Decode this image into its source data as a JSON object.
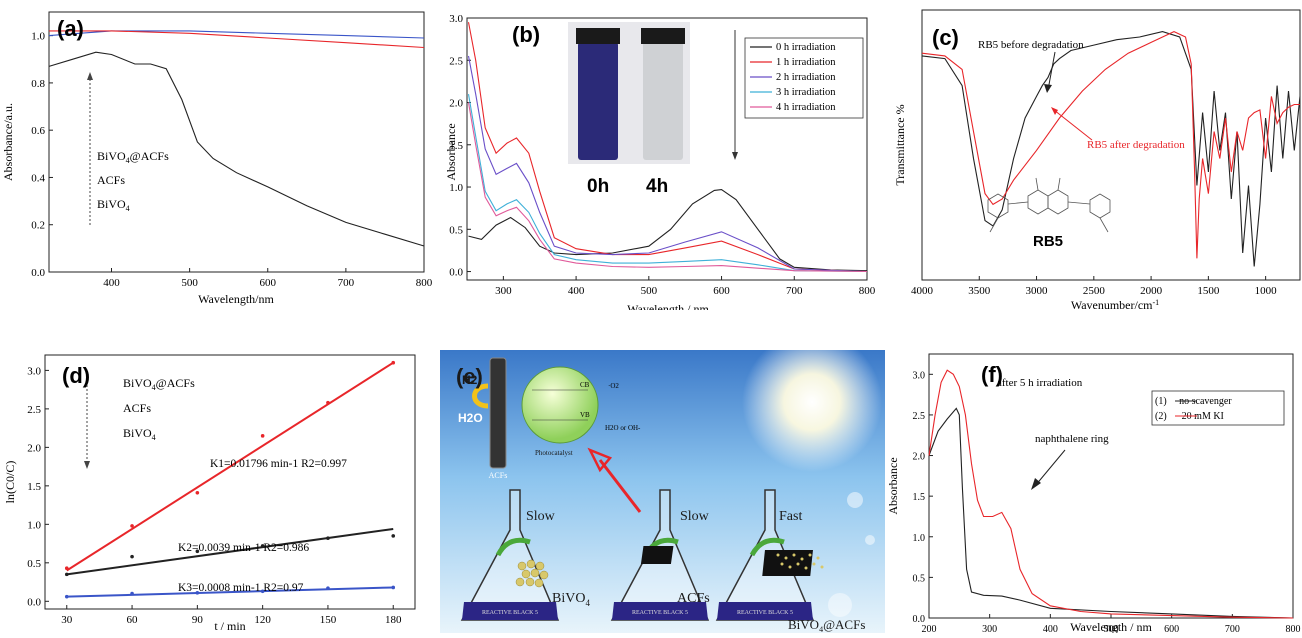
{
  "panels": {
    "a": {
      "label": "(a)",
      "xlabel": "Wavelength/nm",
      "ylabel": "Absorbance/a.u.",
      "legend": [
        "BiVO4@ACFs",
        "ACFs",
        "BiVO4"
      ],
      "legend_sub": "4"
    },
    "b": {
      "label": "(b)",
      "xlabel": "Wavelength / nm",
      "ylabel": "Absorbance",
      "legend": [
        "0 h irradiation",
        "1 h irradiation",
        "2 h irradiation",
        "3 h irradiation",
        "4 h irradiation"
      ],
      "photo_labels": [
        "0h",
        "4h"
      ]
    },
    "c": {
      "label": "(c)",
      "xlabel": "Wavenumber/cm",
      "ylabel": "Transmittance %",
      "annot_before": "RB5 before degradation",
      "annot_after": "RB5 after degradation",
      "molecule": "RB5"
    },
    "d": {
      "label": "(d)",
      "xlabel": "t / min",
      "ylabel": "ln(C0/C)",
      "legend": [
        "BiVO4@ACFs",
        "ACFs",
        "BiVO4"
      ],
      "eq1": "K1=0.01796 min-1 R2=0.997",
      "eq2": "K2=0.0039 min-1 R2=0.986",
      "eq3": "K3=0.0008 min-1 R2=0.97"
    },
    "e": {
      "label": "(e)",
      "h2": "H2",
      "h2o": "H2O",
      "acfs_rod": "ACFs",
      "cb": "CB",
      "vb": "VB",
      "photocat": "Photocatalyst",
      "o2": "·O2",
      "h2o_oh": "H2O or OH-",
      "flask_text": "REACTIVE BLACK 5",
      "speeds": [
        "Slow",
        "Slow",
        "Fast"
      ],
      "materials": [
        "BiVO4",
        "ACFs",
        "BiVO4@ACFs"
      ]
    },
    "f": {
      "label": "(f)",
      "xlabel": "Wavelength / nm",
      "ylabel": "Absorbance",
      "annot1": "after 5 h irradiation",
      "annot2": "naphthalene ring",
      "legend": [
        "(1)     no scavenger",
        "(2)      20 mM KI"
      ]
    }
  },
  "colors": {
    "black": "#222222",
    "red": "#e8262a",
    "blue": "#3a55c8",
    "purple": "#6a4fc8",
    "cyan": "#3fb0d8",
    "pink": "#e05a9a",
    "flask": "#2b2585"
  },
  "chart_data": [
    {
      "panel": "a",
      "type": "line",
      "xlim": [
        320,
        800
      ],
      "ylim": [
        0,
        1.1
      ],
      "xticks": [
        400,
        500,
        600,
        700,
        800
      ],
      "yticks": [
        0.0,
        0.2,
        0.4,
        0.6,
        0.8,
        1.0
      ],
      "series": [
        {
          "name": "BiVO4@ACFs",
          "color": "#3a55c8",
          "x": [
            320,
            400,
            500,
            600,
            700,
            800
          ],
          "y": [
            1.0,
            1.02,
            1.02,
            1.01,
            1.0,
            0.99
          ]
        },
        {
          "name": "ACFs",
          "color": "#e8262a",
          "x": [
            320,
            400,
            500,
            600,
            700,
            800
          ],
          "y": [
            1.02,
            1.02,
            1.01,
            0.99,
            0.97,
            0.95
          ]
        },
        {
          "name": "BiVO4",
          "color": "#222222",
          "x": [
            320,
            350,
            380,
            400,
            430,
            450,
            470,
            490,
            510,
            530,
            560,
            600,
            650,
            700,
            750,
            800
          ],
          "y": [
            0.87,
            0.9,
            0.93,
            0.92,
            0.88,
            0.88,
            0.86,
            0.73,
            0.55,
            0.48,
            0.42,
            0.36,
            0.28,
            0.21,
            0.16,
            0.11
          ]
        }
      ]
    },
    {
      "panel": "b",
      "type": "line",
      "xlim": [
        250,
        800
      ],
      "ylim": [
        -0.1,
        3.0
      ],
      "xticks": [
        300,
        400,
        500,
        600,
        700,
        800
      ],
      "yticks": [
        0.0,
        0.5,
        1.0,
        1.5,
        2.0,
        2.5,
        3.0
      ],
      "series": [
        {
          "name": "0 h irradiation",
          "color": "#222222",
          "x": [
            252,
            270,
            290,
            310,
            330,
            350,
            370,
            400,
            450,
            500,
            530,
            560,
            590,
            600,
            620,
            650,
            680,
            700,
            750,
            800
          ],
          "y": [
            0.42,
            0.38,
            0.55,
            0.64,
            0.52,
            0.3,
            0.22,
            0.2,
            0.22,
            0.3,
            0.5,
            0.8,
            0.96,
            0.97,
            0.85,
            0.5,
            0.15,
            0.05,
            0.02,
            0.01
          ]
        },
        {
          "name": "1 h irradiation",
          "color": "#e8262a",
          "x": [
            252,
            262,
            275,
            290,
            305,
            318,
            335,
            350,
            370,
            400,
            450,
            500,
            550,
            600,
            650,
            700,
            800
          ],
          "y": [
            2.95,
            2.5,
            1.7,
            1.4,
            1.52,
            1.58,
            1.4,
            0.95,
            0.4,
            0.27,
            0.2,
            0.2,
            0.28,
            0.36,
            0.2,
            0.03,
            0.0
          ]
        },
        {
          "name": "2 h irradiation",
          "color": "#6a4fc8",
          "x": [
            252,
            262,
            275,
            290,
            305,
            318,
            335,
            350,
            370,
            400,
            450,
            500,
            550,
            600,
            650,
            700,
            800
          ],
          "y": [
            2.55,
            2.1,
            1.45,
            1.15,
            1.22,
            1.28,
            1.05,
            0.7,
            0.3,
            0.22,
            0.2,
            0.22,
            0.35,
            0.47,
            0.28,
            0.03,
            0.0
          ]
        },
        {
          "name": "3 h irradiation",
          "color": "#3fb0d8",
          "x": [
            252,
            262,
            275,
            290,
            305,
            318,
            335,
            350,
            370,
            400,
            450,
            500,
            550,
            600,
            650,
            700,
            800
          ],
          "y": [
            2.1,
            1.6,
            0.95,
            0.72,
            0.8,
            0.85,
            0.7,
            0.45,
            0.2,
            0.14,
            0.1,
            0.1,
            0.12,
            0.14,
            0.08,
            0.01,
            0.0
          ]
        },
        {
          "name": "4 h irradiation",
          "color": "#e05a9a",
          "x": [
            252,
            262,
            275,
            290,
            305,
            318,
            335,
            350,
            370,
            400,
            450,
            500,
            550,
            600,
            650,
            700,
            800
          ],
          "y": [
            2.0,
            1.5,
            0.88,
            0.66,
            0.72,
            0.76,
            0.6,
            0.38,
            0.15,
            0.1,
            0.06,
            0.05,
            0.06,
            0.07,
            0.04,
            0.01,
            0.0
          ]
        }
      ]
    },
    {
      "panel": "c",
      "type": "line",
      "xlim": [
        4000,
        700
      ],
      "ylim": [
        0,
        1
      ],
      "xticks": [
        4000,
        3500,
        3000,
        2500,
        2000,
        1500,
        1000
      ],
      "yticks": [],
      "series": [
        {
          "name": "RB5 before degradation",
          "color": "#222222",
          "x": [
            4000,
            3800,
            3650,
            3550,
            3450,
            3380,
            3300,
            3200,
            3100,
            3000,
            2950,
            2900,
            2850,
            2800,
            2700,
            2500,
            2300,
            2100,
            1900,
            1750,
            1650,
            1600,
            1550,
            1500,
            1450,
            1400,
            1350,
            1300,
            1250,
            1200,
            1150,
            1100,
            1050,
            1000,
            950,
            900,
            850,
            800,
            750,
            700
          ],
          "y": [
            0.83,
            0.82,
            0.72,
            0.45,
            0.22,
            0.2,
            0.26,
            0.45,
            0.6,
            0.68,
            0.72,
            0.75,
            0.8,
            0.82,
            0.85,
            0.87,
            0.89,
            0.9,
            0.92,
            0.9,
            0.78,
            0.35,
            0.62,
            0.4,
            0.7,
            0.48,
            0.62,
            0.3,
            0.55,
            0.1,
            0.35,
            0.05,
            0.28,
            0.6,
            0.4,
            0.72,
            0.45,
            0.7,
            0.48,
            0.68
          ]
        },
        {
          "name": "RB5 after degradation",
          "color": "#e8262a",
          "x": [
            4000,
            3800,
            3650,
            3550,
            3450,
            3380,
            3300,
            3200,
            3000,
            2800,
            2600,
            2400,
            2200,
            2000,
            1800,
            1700,
            1650,
            1620,
            1600,
            1580,
            1550,
            1500,
            1450,
            1400,
            1350,
            1300,
            1250,
            1200,
            1150,
            1100,
            1050,
            1000,
            950,
            900,
            850,
            800,
            750,
            700
          ],
          "y": [
            0.84,
            0.83,
            0.78,
            0.55,
            0.32,
            0.28,
            0.3,
            0.37,
            0.48,
            0.6,
            0.7,
            0.78,
            0.84,
            0.88,
            0.92,
            0.9,
            0.8,
            0.4,
            0.08,
            0.3,
            0.45,
            0.32,
            0.55,
            0.45,
            0.6,
            0.4,
            0.55,
            0.48,
            0.6,
            0.62,
            0.63,
            0.45,
            0.68,
            0.58,
            0.62,
            0.64,
            0.65,
            0.65
          ]
        }
      ]
    },
    {
      "panel": "d",
      "type": "scatter",
      "xlim": [
        20,
        190
      ],
      "ylim": [
        -0.1,
        3.2
      ],
      "xticks": [
        30,
        60,
        90,
        120,
        150,
        180
      ],
      "yticks": [
        0.0,
        0.5,
        1.0,
        1.5,
        2.0,
        2.5,
        3.0
      ],
      "series": [
        {
          "name": "BiVO4@ACFs",
          "color": "#e8262a",
          "x": [
            30,
            60,
            90,
            120,
            150,
            180
          ],
          "y": [
            0.43,
            0.98,
            1.41,
            2.15,
            2.58,
            3.1
          ],
          "fit": [
            0.4,
            3.1
          ]
        },
        {
          "name": "ACFs",
          "color": "#222222",
          "x": [
            30,
            60,
            90,
            120,
            150,
            180
          ],
          "y": [
            0.35,
            0.58,
            0.65,
            0.72,
            0.82,
            0.85
          ],
          "fit": [
            0.35,
            0.94
          ]
        },
        {
          "name": "BiVO4",
          "color": "#3a55c8",
          "x": [
            30,
            60,
            90,
            120,
            150,
            180
          ],
          "y": [
            0.06,
            0.1,
            0.11,
            0.13,
            0.17,
            0.18
          ],
          "fit": [
            0.06,
            0.18
          ]
        }
      ]
    },
    {
      "panel": "f",
      "type": "line",
      "xlim": [
        200,
        800
      ],
      "ylim": [
        0,
        3.25
      ],
      "xticks": [
        200,
        300,
        400,
        500,
        600,
        700,
        800
      ],
      "yticks": [
        0.0,
        0.5,
        1.0,
        1.5,
        2.0,
        2.5,
        3.0
      ],
      "series": [
        {
          "name": "no scavenger",
          "color": "#222222",
          "x": [
            200,
            215,
            230,
            245,
            250,
            255,
            262,
            270,
            290,
            320,
            350,
            400,
            500,
            600,
            700,
            800
          ],
          "y": [
            2.0,
            2.3,
            2.45,
            2.58,
            2.5,
            1.6,
            0.6,
            0.32,
            0.28,
            0.27,
            0.22,
            0.12,
            0.08,
            0.05,
            0.02,
            0.0
          ]
        },
        {
          "name": "20 mM KI",
          "color": "#e8262a",
          "x": [
            200,
            210,
            220,
            230,
            240,
            250,
            260,
            270,
            280,
            290,
            305,
            320,
            335,
            350,
            370,
            400,
            450,
            500,
            600,
            700,
            800
          ],
          "y": [
            2.0,
            2.5,
            2.9,
            3.05,
            3.0,
            2.85,
            2.5,
            1.9,
            1.45,
            1.25,
            1.25,
            1.3,
            1.1,
            0.6,
            0.3,
            0.15,
            0.08,
            0.05,
            0.03,
            0.01,
            0.0
          ]
        }
      ]
    }
  ]
}
